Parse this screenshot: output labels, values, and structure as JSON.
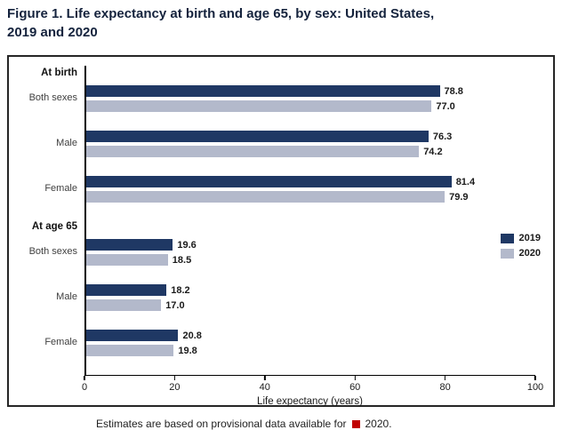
{
  "header": {
    "title_line1": "Figure 1. Life expectancy at birth and age 65, by sex: United States,",
    "title_line2": "2019 and 2020"
  },
  "chart_data": {
    "type": "bar",
    "orientation": "horizontal",
    "title": "Figure 1. Life expectancy at birth and age 65, by sex: United States, 2019 and 2020",
    "xlabel": "Life expectancy (years)",
    "xlim": [
      0,
      100
    ],
    "xticks": [
      0,
      20,
      40,
      60,
      80,
      100
    ],
    "grid": false,
    "legend_position": "right-middle",
    "series": [
      {
        "name": "2019",
        "color": "#1f3864"
      },
      {
        "name": "2020",
        "color": "#b3b9cb"
      }
    ],
    "groups": [
      {
        "header": "At birth",
        "rows": [
          {
            "label": "Both sexes",
            "values": [
              78.8,
              77.0
            ]
          },
          {
            "label": "Male",
            "values": [
              76.3,
              74.2
            ]
          },
          {
            "label": "Female",
            "values": [
              81.4,
              79.9
            ]
          }
        ]
      },
      {
        "header": "At age 65",
        "rows": [
          {
            "label": "Both sexes",
            "values": [
              19.6,
              18.5
            ]
          },
          {
            "label": "Male",
            "values": [
              18.2,
              17.0
            ]
          },
          {
            "label": "Female",
            "values": [
              20.8,
              19.8
            ]
          }
        ]
      }
    ]
  },
  "footer": {
    "left": "Estimates are based on provisional data available for",
    "right": "2020.",
    "marker_color": "#c00000"
  }
}
